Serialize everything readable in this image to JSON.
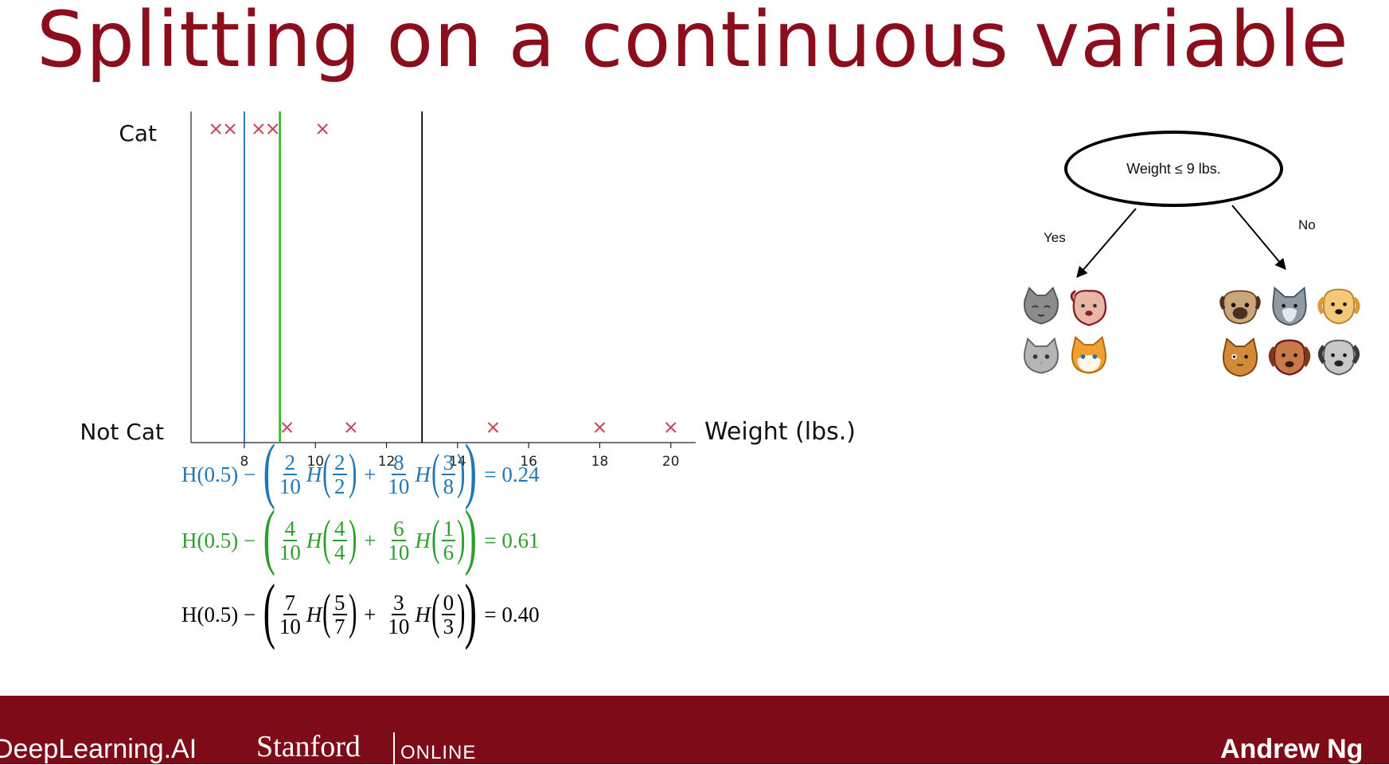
{
  "title": "Splitting on a continuous variable",
  "chart_data": {
    "type": "scatter",
    "xlabel": "Weight (lbs.)",
    "ylabel": "",
    "categories_y": [
      "Cat",
      "Not Cat"
    ],
    "xlim": [
      6.5,
      20.7
    ],
    "xticks": [
      8,
      10,
      12,
      14,
      16,
      18,
      20
    ],
    "grid": false,
    "points": [
      {
        "x": 7.2,
        "class": "Cat"
      },
      {
        "x": 7.6,
        "class": "Cat"
      },
      {
        "x": 8.4,
        "class": "Cat"
      },
      {
        "x": 8.8,
        "class": "Cat"
      },
      {
        "x": 10.2,
        "class": "Cat"
      },
      {
        "x": 9.2,
        "class": "Not Cat"
      },
      {
        "x": 11,
        "class": "Not Cat"
      },
      {
        "x": 15,
        "class": "Not Cat"
      },
      {
        "x": 18,
        "class": "Not Cat"
      },
      {
        "x": 20,
        "class": "Not Cat"
      }
    ],
    "thresholds": [
      {
        "x": 8,
        "color": "#1f6fb2"
      },
      {
        "x": 9,
        "color": "#2db51f"
      },
      {
        "x": 13,
        "color": "#000000"
      }
    ],
    "marker_color": "#c9455a"
  },
  "equations": [
    {
      "color": "#1f77b4",
      "lead": "H(0.5) −",
      "a_num": "2",
      "a_den": "10",
      "h1_num": "2",
      "h1_den": "2",
      "b_num": "8",
      "b_den": "10",
      "h2_num": "3",
      "h2_den": "8",
      "result": "= 0.24"
    },
    {
      "color": "#2ca02c",
      "lead": "H(0.5) −",
      "a_num": "4",
      "a_den": "10",
      "h1_num": "4",
      "h1_den": "4",
      "b_num": "6",
      "b_den": "10",
      "h2_num": "1",
      "h2_den": "6",
      "result": "= 0.61"
    },
    {
      "color": "#000000",
      "lead": "H(0.5) −",
      "a_num": "7",
      "a_den": "10",
      "h1_num": "5",
      "h1_den": "7",
      "b_num": "3",
      "b_den": "10",
      "h2_num": "0",
      "h2_den": "3",
      "result": "= 0.40"
    }
  ],
  "tree": {
    "node_label": "Weight ≤ 9 lbs.",
    "yes_label": "Yes",
    "no_label": "No"
  },
  "footer": {
    "logo_left": "DeepLearning.AI",
    "logo_stanford": "Stanford",
    "logo_online": "ONLINE",
    "presenter": "Andrew Ng"
  }
}
